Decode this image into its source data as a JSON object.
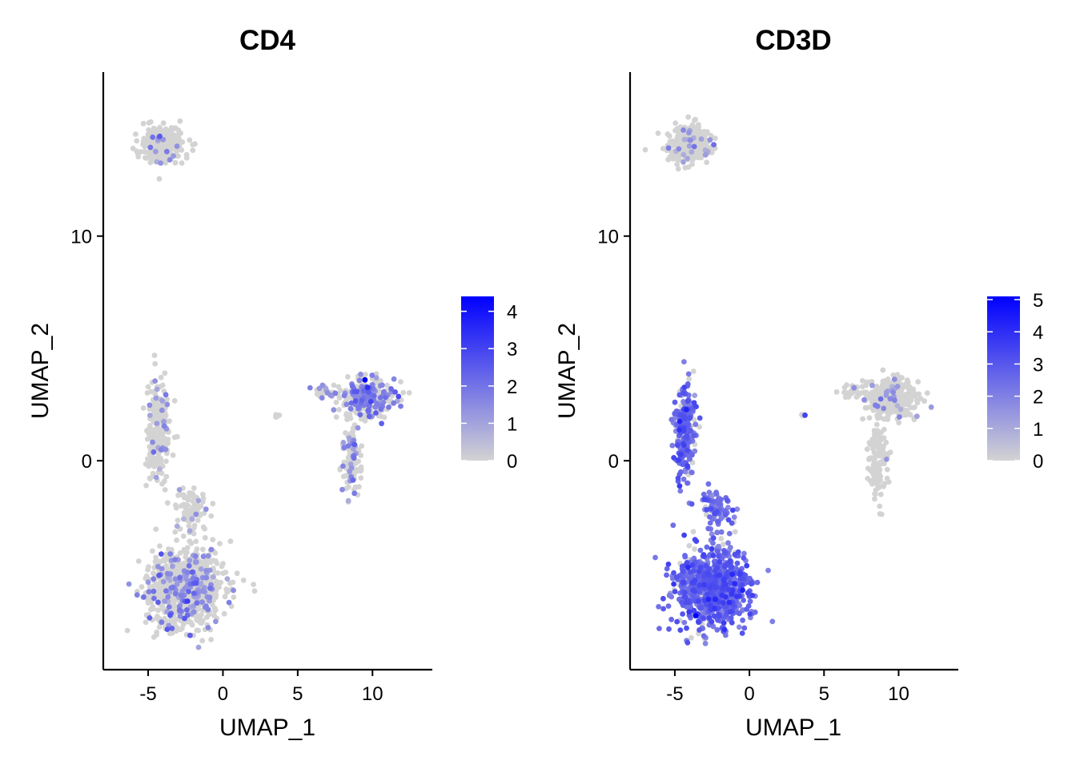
{
  "chart_data": [
    {
      "type": "scatter",
      "title": "CD4",
      "xlabel": "UMAP_1",
      "ylabel": "UMAP_2",
      "xlim": [
        -8,
        14
      ],
      "ylim": [
        -9.3,
        17.3
      ],
      "x_ticks": [
        -5,
        0,
        5,
        10
      ],
      "x_tick_labels": [
        "-5",
        "0",
        "5",
        "10"
      ],
      "y_ticks": [
        0,
        10
      ],
      "y_tick_labels": [
        "0",
        "10"
      ],
      "grid": false,
      "legend": {
        "placement": "right",
        "type": "colorbar",
        "min": 0,
        "max": 4.4,
        "ticks": [
          0,
          1,
          2,
          3,
          4
        ],
        "tick_labels": [
          "0",
          "1",
          "2",
          "3",
          "4"
        ]
      },
      "colors": {
        "low": "#d3d3d3",
        "high": "#0000ff"
      },
      "clusters": [
        {
          "center": [
            -4,
            14.1
          ],
          "spread": [
            1.3,
            0.7
          ],
          "count": 320,
          "expr_rate": 0.04,
          "expr_scale": 1.2
        },
        {
          "center": [
            -4.3,
            1.2
          ],
          "spread": [
            0.65,
            2.0
          ],
          "count": 260,
          "expr_rate": 0.06,
          "expr_scale": 1.2
        },
        {
          "center": [
            -2.5,
            -5.7
          ],
          "spread": [
            2.2,
            1.6
          ],
          "count": 900,
          "expr_rate": 0.18,
          "expr_scale": 1.4
        },
        {
          "center": [
            -2.2,
            -2.2
          ],
          "spread": [
            1.0,
            0.9
          ],
          "count": 80,
          "expr_rate": 0.05,
          "expr_scale": 1.0
        },
        {
          "center": [
            9.6,
            2.8
          ],
          "spread": [
            1.6,
            0.8
          ],
          "count": 280,
          "expr_rate": 0.35,
          "expr_scale": 1.7
        },
        {
          "center": [
            8.6,
            0.0
          ],
          "spread": [
            0.55,
            1.6
          ],
          "count": 120,
          "expr_rate": 0.25,
          "expr_scale": 1.4
        },
        {
          "center": [
            6.8,
            3.1
          ],
          "spread": [
            0.9,
            0.3
          ],
          "count": 30,
          "expr_rate": 0.2,
          "expr_scale": 1.3
        },
        {
          "center": [
            3.6,
            2.0
          ],
          "spread": [
            0.15,
            0.1
          ],
          "count": 6,
          "expr_rate": 0.0,
          "expr_scale": 1.0
        }
      ],
      "max_points": [
        {
          "x": 9.5,
          "y": 3.6,
          "value": 4.4
        }
      ]
    },
    {
      "type": "scatter",
      "title": "CD3D",
      "xlabel": "UMAP_1",
      "ylabel": "UMAP_2",
      "xlim": [
        -8,
        14
      ],
      "ylim": [
        -9.3,
        17.3
      ],
      "x_ticks": [
        -5,
        0,
        5,
        10
      ],
      "x_tick_labels": [
        "-5",
        "0",
        "5",
        "10"
      ],
      "y_ticks": [
        0,
        10
      ],
      "y_tick_labels": [
        "0",
        "10"
      ],
      "grid": false,
      "legend": {
        "placement": "right",
        "type": "colorbar",
        "min": 0,
        "max": 5.1,
        "ticks": [
          0,
          1,
          2,
          3,
          4,
          5
        ],
        "tick_labels": [
          "0",
          "1",
          "2",
          "3",
          "4",
          "5"
        ]
      },
      "colors": {
        "low": "#d3d3d3",
        "high": "#0000ff"
      },
      "clusters": [
        {
          "center": [
            -4,
            14.1
          ],
          "spread": [
            1.3,
            0.7
          ],
          "count": 320,
          "expr_rate": 0.06,
          "expr_scale": 1.2
        },
        {
          "center": [
            -4.3,
            1.2
          ],
          "spread": [
            0.65,
            2.0
          ],
          "count": 260,
          "expr_rate": 0.85,
          "expr_scale": 2.6
        },
        {
          "center": [
            -2.5,
            -5.7
          ],
          "spread": [
            2.2,
            1.6
          ],
          "count": 900,
          "expr_rate": 0.92,
          "expr_scale": 2.8
        },
        {
          "center": [
            -2.2,
            -2.2
          ],
          "spread": [
            1.0,
            0.9
          ],
          "count": 80,
          "expr_rate": 0.8,
          "expr_scale": 2.5
        },
        {
          "center": [
            9.6,
            2.8
          ],
          "spread": [
            1.6,
            0.8
          ],
          "count": 280,
          "expr_rate": 0.08,
          "expr_scale": 1.3
        },
        {
          "center": [
            8.6,
            0.0
          ],
          "spread": [
            0.55,
            1.6
          ],
          "count": 120,
          "expr_rate": 0.05,
          "expr_scale": 1.2
        },
        {
          "center": [
            6.8,
            3.1
          ],
          "spread": [
            0.9,
            0.3
          ],
          "count": 30,
          "expr_rate": 0.05,
          "expr_scale": 1.2
        },
        {
          "center": [
            3.6,
            2.0
          ],
          "spread": [
            0.15,
            0.1
          ],
          "count": 6,
          "expr_rate": 0.2,
          "expr_scale": 2.0
        }
      ],
      "max_points": [
        {
          "x": -3.6,
          "y": -6.9,
          "value": 5.1
        }
      ]
    }
  ]
}
